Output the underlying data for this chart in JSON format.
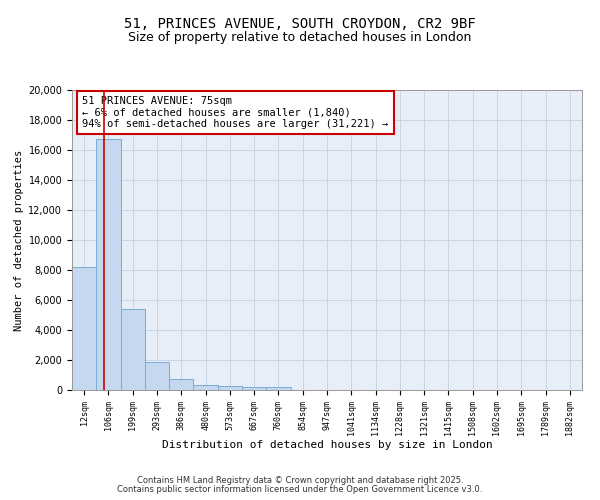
{
  "title1": "51, PRINCES AVENUE, SOUTH CROYDON, CR2 9BF",
  "title2": "Size of property relative to detached houses in London",
  "xlabel": "Distribution of detached houses by size in London",
  "ylabel": "Number of detached properties",
  "categories": [
    "12sqm",
    "106sqm",
    "199sqm",
    "293sqm",
    "386sqm",
    "480sqm",
    "573sqm",
    "667sqm",
    "760sqm",
    "854sqm",
    "947sqm",
    "1041sqm",
    "1134sqm",
    "1228sqm",
    "1321sqm",
    "1415sqm",
    "1508sqm",
    "1602sqm",
    "1695sqm",
    "1789sqm",
    "1882sqm"
  ],
  "values": [
    8200,
    16700,
    5400,
    1900,
    750,
    350,
    250,
    200,
    200,
    0,
    0,
    0,
    0,
    0,
    0,
    0,
    0,
    0,
    0,
    0,
    0
  ],
  "bar_color": "#c5d8f0",
  "bar_edge_color": "#7aadd4",
  "bar_width": 1.0,
  "red_line_x": 0.83,
  "annotation_text": "51 PRINCES AVENUE: 75sqm\n← 6% of detached houses are smaller (1,840)\n94% of semi-detached houses are larger (31,221) →",
  "annotation_box_color": "#ffffff",
  "annotation_edge_color": "#cc0000",
  "ylim": [
    0,
    20000
  ],
  "yticks": [
    0,
    2000,
    4000,
    6000,
    8000,
    10000,
    12000,
    14000,
    16000,
    18000,
    20000
  ],
  "grid_color": "#c8d4e8",
  "bg_color": "#e8eef8",
  "footer1": "Contains HM Land Registry data © Crown copyright and database right 2025.",
  "footer2": "Contains public sector information licensed under the Open Government Licence v3.0."
}
